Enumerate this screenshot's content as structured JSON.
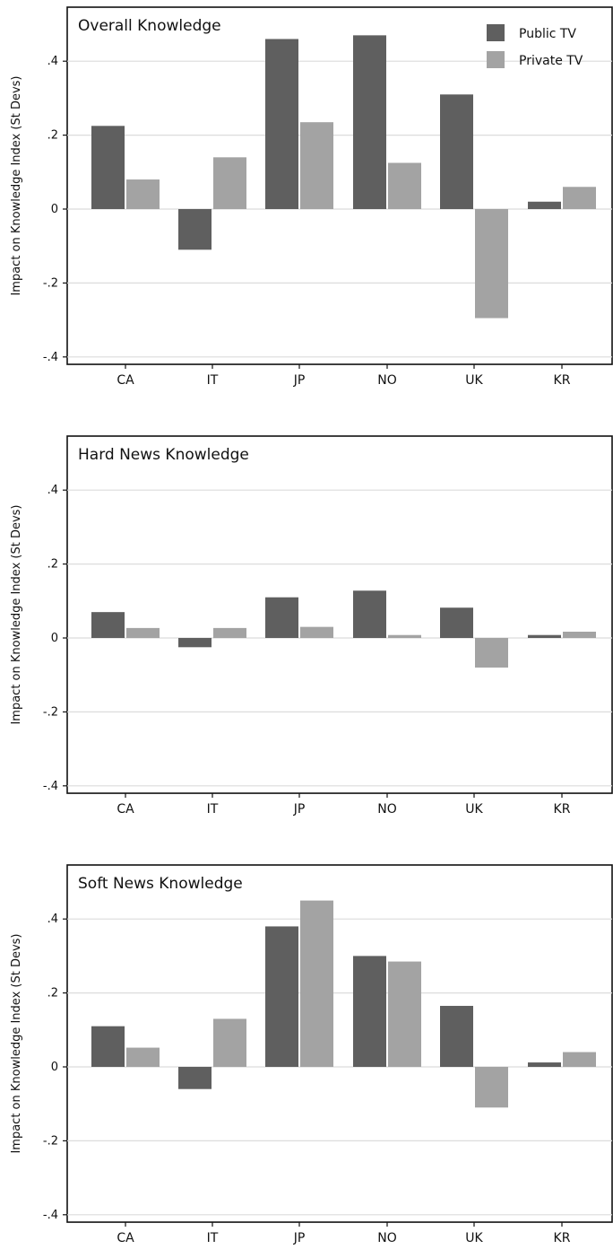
{
  "chart_data": [
    {
      "type": "bar",
      "title": "Overall Knowledge",
      "ylabel": "Impact on Knowledge Index (St Devs)",
      "categories": [
        "CA",
        "IT",
        "JP",
        "NO",
        "UK",
        "KR"
      ],
      "yticks": [
        ".4",
        ".2",
        "0",
        "-.2",
        "-.4"
      ],
      "ylim": [
        -0.42,
        0.54
      ],
      "grid": true,
      "legend": "top-right",
      "series": [
        {
          "name": "Public TV",
          "color": "#5f5f5f",
          "values": [
            0.225,
            -0.11,
            0.46,
            0.47,
            0.31,
            0.02
          ]
        },
        {
          "name": "Private TV",
          "color": "#a3a3a3",
          "values": [
            0.08,
            0.14,
            0.235,
            0.125,
            -0.295,
            0.06
          ]
        }
      ]
    },
    {
      "type": "bar",
      "title": "Hard News Knowledge",
      "ylabel": "Impact on Knowledge Index (St Devs)",
      "categories": [
        "CA",
        "IT",
        "JP",
        "NO",
        "UK",
        "KR"
      ],
      "yticks": [
        ".4",
        ".2",
        "0",
        "-.2",
        "-.4"
      ],
      "ylim": [
        -0.42,
        0.54
      ],
      "grid": true,
      "legend": "none",
      "series": [
        {
          "name": "Public TV",
          "color": "#5f5f5f",
          "values": [
            0.07,
            -0.025,
            0.11,
            0.128,
            0.082,
            0.008
          ]
        },
        {
          "name": "Private TV",
          "color": "#a3a3a3",
          "values": [
            0.027,
            0.027,
            0.03,
            0.008,
            -0.08,
            0.017
          ]
        }
      ]
    },
    {
      "type": "bar",
      "title": "Soft News Knowledge",
      "ylabel": "Impact on Knowledge Index (St Devs)",
      "categories": [
        "CA",
        "IT",
        "JP",
        "NO",
        "UK",
        "KR"
      ],
      "yticks": [
        ".4",
        ".2",
        "0",
        "-.2",
        "-.4"
      ],
      "ylim": [
        -0.42,
        0.54
      ],
      "grid": true,
      "legend": "none",
      "series": [
        {
          "name": "Public TV",
          "color": "#5f5f5f",
          "values": [
            0.11,
            -0.06,
            0.38,
            0.3,
            0.165,
            0.012
          ]
        },
        {
          "name": "Private TV",
          "color": "#a3a3a3",
          "values": [
            0.052,
            0.13,
            0.45,
            0.285,
            -0.11,
            0.04
          ]
        }
      ]
    }
  ]
}
